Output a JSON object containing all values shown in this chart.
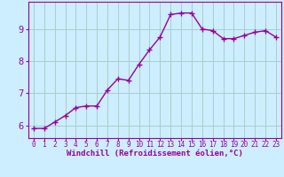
{
  "x": [
    0,
    1,
    2,
    3,
    4,
    5,
    6,
    7,
    8,
    9,
    10,
    11,
    12,
    13,
    14,
    15,
    16,
    17,
    18,
    19,
    20,
    21,
    22,
    23
  ],
  "y": [
    5.9,
    5.9,
    6.1,
    6.3,
    6.55,
    6.6,
    6.6,
    7.1,
    7.45,
    7.4,
    7.9,
    8.35,
    8.75,
    9.45,
    9.5,
    9.5,
    9.0,
    8.95,
    8.7,
    8.7,
    8.8,
    8.9,
    8.95,
    8.75
  ],
  "line_color": "#990099",
  "marker": "+",
  "marker_size": 4,
  "line_width": 1.0,
  "bg_color": "#cceeff",
  "grid_color": "#aacccc",
  "xlabel": "Windchill (Refroidissement éolien,°C)",
  "xlabel_fontsize": 6.5,
  "ylabel_ticks": [
    6,
    7,
    8,
    9
  ],
  "xlim": [
    -0.5,
    23.5
  ],
  "ylim": [
    5.6,
    9.85
  ],
  "xtick_labels": [
    "0",
    "1",
    "2",
    "3",
    "4",
    "5",
    "6",
    "7",
    "8",
    "9",
    "10",
    "11",
    "12",
    "13",
    "14",
    "15",
    "16",
    "17",
    "18",
    "19",
    "20",
    "21",
    "22",
    "23"
  ],
  "tick_fontsize": 5.5,
  "ytick_fontsize": 7.5,
  "tick_color": "#990099",
  "spine_color": "#990099"
}
